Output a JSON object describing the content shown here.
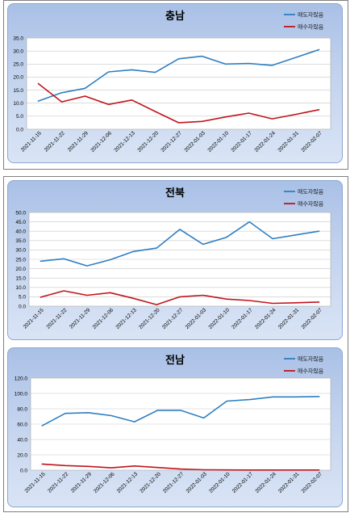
{
  "colors": {
    "sell_line": "#2f7fc2",
    "buy_line": "#c0141c",
    "panel_border": "#8ea6d2",
    "grid": "#c8c8c8"
  },
  "chart_data": [
    {
      "type": "line",
      "title": "충남",
      "categories": [
        "2021-11-15",
        "2021-11-22",
        "2021-11-29",
        "2021-12-06",
        "2021-12-13",
        "2021-12-20",
        "2021-12-27",
        "2022-01-03",
        "2022-01-10",
        "2022-01-17",
        "2022-01-24",
        "2022-01-31",
        "2022-02-07"
      ],
      "ylim": [
        0,
        35
      ],
      "yticks": [
        "0.0",
        "5.0",
        "10.0",
        "15.0",
        "20.0",
        "25.0",
        "30.0",
        "35.0"
      ],
      "ytick_values": [
        0,
        5,
        10,
        15,
        20,
        25,
        30,
        35
      ],
      "legend_position": "top-right",
      "series": [
        {
          "name": "매도자많음",
          "color": "#2f7fc2",
          "values": [
            10.8,
            14.0,
            15.7,
            22.0,
            22.8,
            21.8,
            27.0,
            28.0,
            25.0,
            25.2,
            24.5,
            27.5,
            30.5
          ]
        },
        {
          "name": "매수자많음",
          "color": "#c0141c",
          "values": [
            17.5,
            10.5,
            12.7,
            9.5,
            11.2,
            6.8,
            2.5,
            3.0,
            4.7,
            6.2,
            4.0,
            5.7,
            7.5
          ]
        }
      ]
    },
    {
      "type": "line",
      "title": "전북",
      "categories": [
        "2021-11-15",
        "2021-11-22",
        "2021-11-29",
        "2021-12-06",
        "2021-12-13",
        "2021-12-20",
        "2021-12-27",
        "2022-01-03",
        "2022-01-10",
        "2022-01-17",
        "2022-01-24",
        "2022-01-31",
        "2022-02-07"
      ],
      "ylim": [
        0,
        50
      ],
      "yticks": [
        "0.0",
        "5.0",
        "10.0",
        "15.0",
        "20.0",
        "25.0",
        "30.0",
        "35.0",
        "40.0",
        "45.0",
        "50.0"
      ],
      "ytick_values": [
        0,
        5,
        10,
        15,
        20,
        25,
        30,
        35,
        40,
        45,
        50
      ],
      "legend_position": "top-right",
      "series": [
        {
          "name": "매도자많음",
          "color": "#2f7fc2",
          "values": [
            24.0,
            25.3,
            21.5,
            24.8,
            29.2,
            31.0,
            41.0,
            33.0,
            36.7,
            45.0,
            36.0,
            38.0,
            40.0
          ]
        },
        {
          "name": "매수자많음",
          "color": "#c0141c",
          "values": [
            4.8,
            8.2,
            5.8,
            7.2,
            4.2,
            0.8,
            5.0,
            5.8,
            3.8,
            3.0,
            1.5,
            1.8,
            2.2
          ]
        }
      ]
    },
    {
      "type": "line",
      "title": "전남",
      "categories": [
        "2021-11-15",
        "2021-11-22",
        "2021-11-29",
        "2021-12-06",
        "2021-12-13",
        "2021-12-20",
        "2021-12-27",
        "2022-01-03",
        "2022-01-10",
        "2022-01-17",
        "2022-01-24",
        "2022-01-31",
        "2022-02-07"
      ],
      "ylim": [
        0,
        120
      ],
      "yticks": [
        "0.0",
        "20.0",
        "40.0",
        "60.0",
        "80.0",
        "100.0",
        "120.0"
      ],
      "ytick_values": [
        0,
        20,
        40,
        60,
        80,
        100,
        120
      ],
      "legend_position": "top-right",
      "series": [
        {
          "name": "매도자많음",
          "color": "#2f7fc2",
          "values": [
            58.0,
            74.0,
            75.0,
            71.0,
            63.0,
            78.0,
            78.0,
            68.0,
            90.0,
            92.0,
            95.5,
            95.5,
            96.0
          ]
        },
        {
          "name": "매수자많음",
          "color": "#c0141c",
          "values": [
            8.0,
            6.0,
            5.0,
            3.0,
            5.5,
            3.5,
            1.5,
            0.5,
            0.3,
            0.2,
            0.2,
            0.2,
            0.2
          ]
        }
      ]
    }
  ]
}
